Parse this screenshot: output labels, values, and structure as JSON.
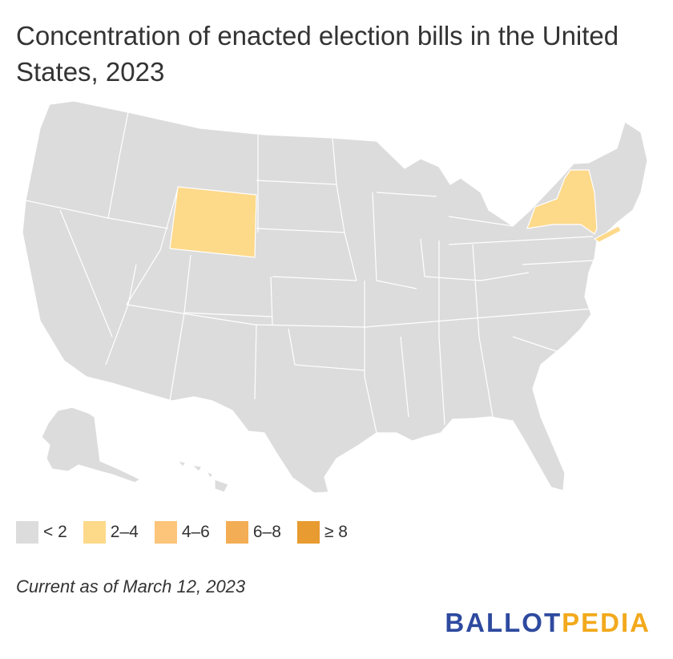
{
  "title": "Concentration of enacted election bills in the United States, 2023",
  "legend": [
    {
      "label": "< 2",
      "color": "#dcdcdc"
    },
    {
      "label": "2–4",
      "color": "#fdd98a"
    },
    {
      "label": "4–6",
      "color": "#fcc57a"
    },
    {
      "label": "6–8",
      "color": "#f3ad55"
    },
    {
      "label": "≥ 8",
      "color": "#e89b30"
    }
  ],
  "highlighted_states": [
    {
      "name": "Wyoming",
      "category": "2–4"
    },
    {
      "name": "New York",
      "category": "2–4"
    }
  ],
  "note": "Current as of March 12, 2023",
  "logo": {
    "part1": "BALLOT",
    "part2": "PEDIA"
  }
}
